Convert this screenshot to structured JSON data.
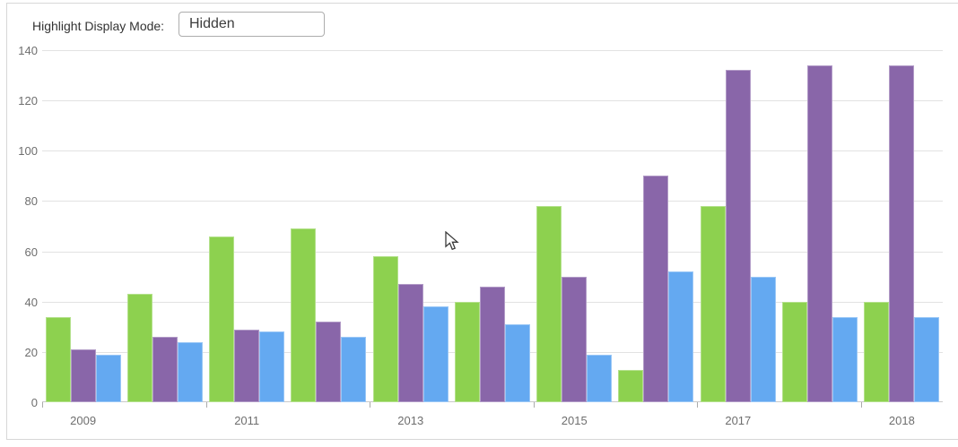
{
  "controls": {
    "highlight_label": "Highlight Display Mode:",
    "highlight_value": "Hidden"
  },
  "colors": {
    "green": "#8dd14f",
    "purple": "#8966a9",
    "blue": "#64a9f1",
    "gridline": "#e2e2e2",
    "axis_line": "#c9c9c9",
    "axis_text": "#6e6e6e",
    "widget_border": "#d7d7d7"
  },
  "chart_data": {
    "type": "bar",
    "title": "",
    "xlabel": "",
    "ylabel": "",
    "ylim": [
      0,
      140
    ],
    "y_ticks": [
      0,
      20,
      40,
      60,
      80,
      100,
      120,
      140
    ],
    "grid": "horizontal",
    "legend": "none",
    "group_count": 11,
    "x_tick_labels": [
      "2009",
      "2011",
      "2013",
      "2015",
      "2017",
      "2018"
    ],
    "labeled_group_indices": [
      0,
      2,
      4,
      6,
      8,
      10
    ],
    "series": [
      {
        "name": "green-series",
        "color_key": "green",
        "values": [
          34,
          43,
          66,
          69,
          58,
          40,
          78,
          13,
          78,
          40,
          40
        ]
      },
      {
        "name": "purple-series",
        "color_key": "purple",
        "values": [
          21,
          26,
          29,
          32,
          47,
          46,
          50,
          90,
          132,
          134,
          134
        ]
      },
      {
        "name": "blue-series",
        "color_key": "blue",
        "values": [
          19,
          24,
          28,
          26,
          38,
          31,
          19,
          52,
          50,
          34,
          34
        ]
      }
    ]
  }
}
